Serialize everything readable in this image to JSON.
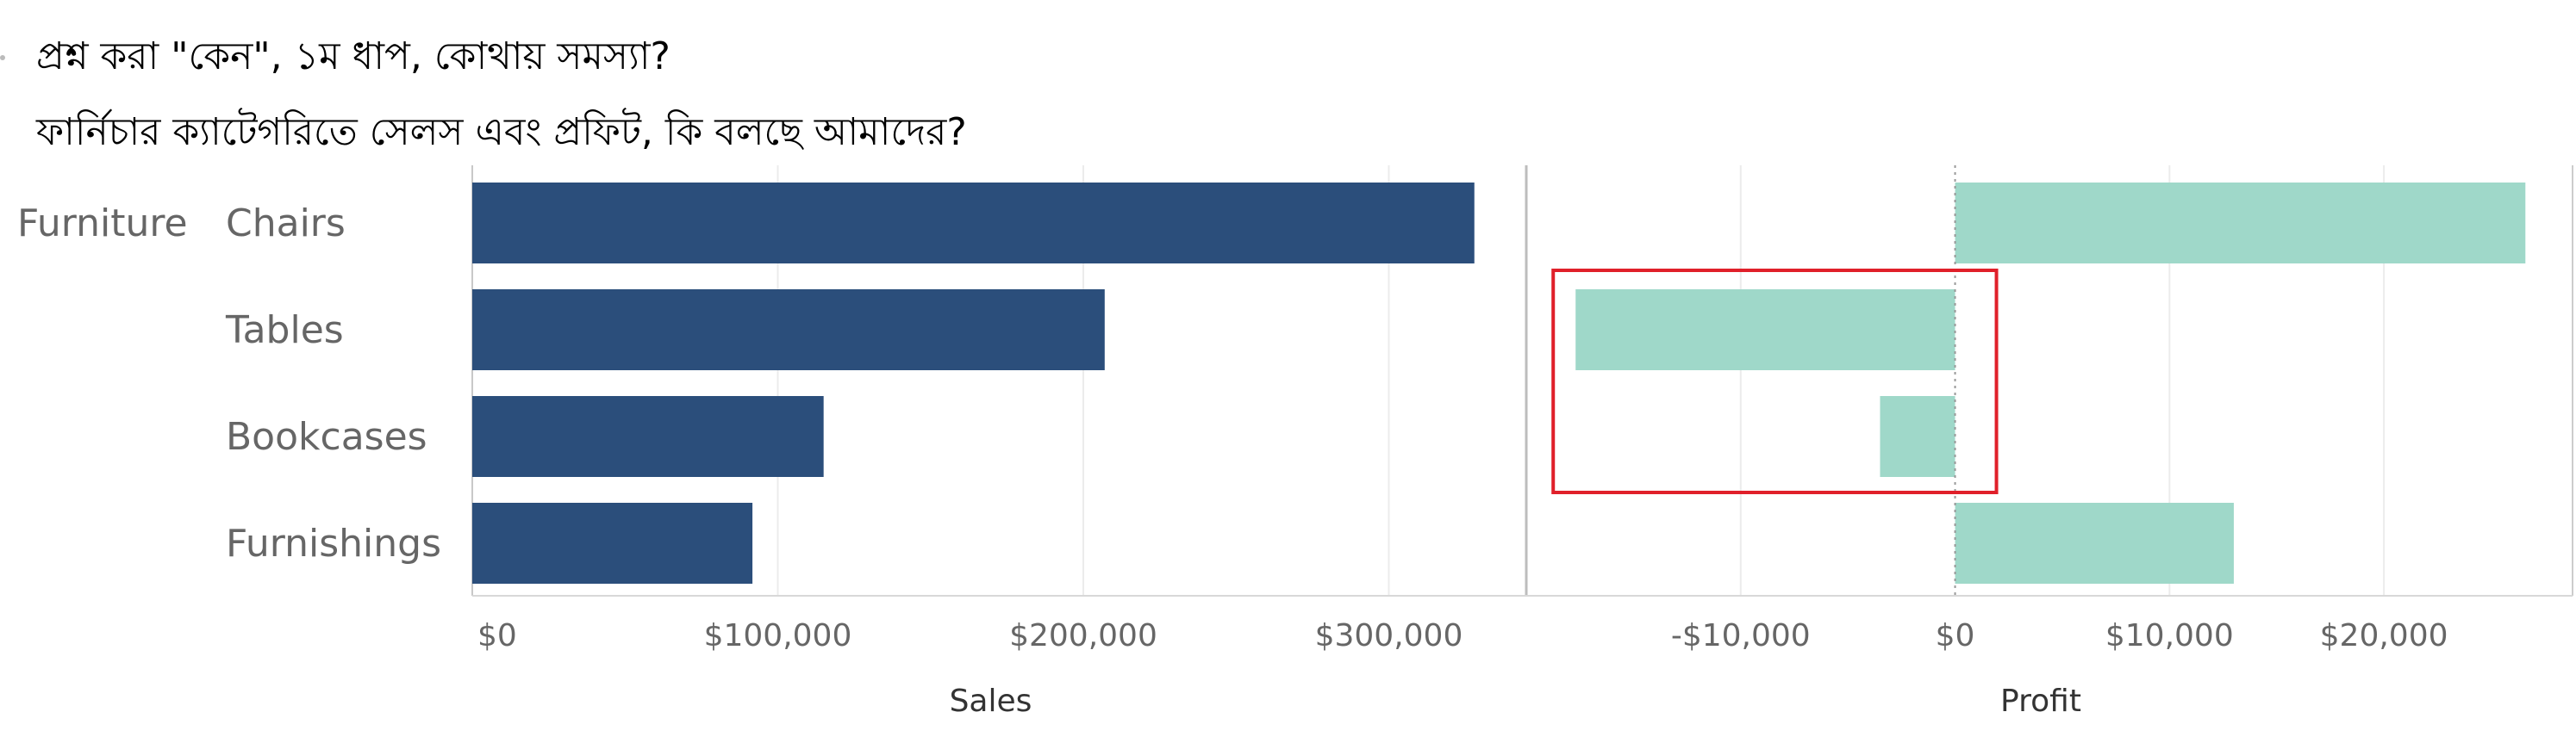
{
  "title": {
    "line1": "প্রশ্ন করা \"কেন\", ১ম ধাপ, কোথায় সমস্যা?",
    "line2": "ফার্নিচার ক্যাটেগরিতে সেলস এবং প্রফিট, কি বলছে আমাদের?"
  },
  "chart_data": {
    "type": "bar",
    "orientation": "horizontal",
    "group": "Furniture",
    "categories": [
      "Chairs",
      "Tables",
      "Bookcases",
      "Furnishings"
    ],
    "panels": [
      {
        "measure": "Sales",
        "xlabel": "Sales",
        "values": [
          328000,
          207000,
          115000,
          91700
        ],
        "xlim": [
          0,
          345000
        ],
        "ticks": [
          0,
          100000,
          200000,
          300000
        ],
        "tick_labels": [
          "$0",
          "$100,000",
          "$200,000",
          "$300,000"
        ],
        "color": "#2b4e7b"
      },
      {
        "measure": "Profit",
        "xlabel": "Profit",
        "values": [
          26600,
          -17700,
          -3500,
          13000
        ],
        "xlim": [
          -20000,
          28800
        ],
        "ticks": [
          -10000,
          0,
          10000,
          20000
        ],
        "tick_labels": [
          "-$10,000",
          "$0",
          "$10,000",
          "$20,000"
        ],
        "color": "#9fd8c9"
      }
    ],
    "highlight": {
      "panel": "Profit",
      "categories": [
        "Tables",
        "Bookcases"
      ],
      "color": "#e0202a"
    },
    "grid": true,
    "legend": "none"
  }
}
